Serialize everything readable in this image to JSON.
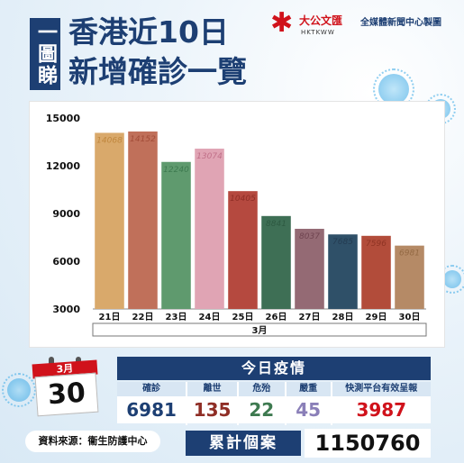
{
  "header": {
    "badge": "一圖睇",
    "title_line1": "香港近10日",
    "title_line2": "新增確診一覽",
    "logo_text": "大公文匯",
    "logo_sub": "HKTKWW",
    "credit": "全媒體新聞中心製圖"
  },
  "chart_data": {
    "type": "bar",
    "categories": [
      "21日",
      "22日",
      "23日",
      "24日",
      "25日",
      "26日",
      "27日",
      "28日",
      "29日",
      "30日"
    ],
    "values": [
      14068,
      14152,
      12240,
      13074,
      10405,
      8841,
      8037,
      7685,
      7596,
      6981
    ],
    "colors": [
      "#d9a96b",
      "#c0705a",
      "#5f9a6e",
      "#e0a4b4",
      "#b5493f",
      "#3e6f55",
      "#946a74",
      "#2f5068",
      "#b24c3a",
      "#b58a66"
    ],
    "label_colors": [
      "#c0873e",
      "#a24c38",
      "#3e7a50",
      "#c06f88",
      "#8f2e26",
      "#2e5a42",
      "#6f4450",
      "#243c52",
      "#8f3424",
      "#946a44"
    ],
    "xlabel": "3月",
    "ylim": [
      3000,
      15000
    ],
    "yticks": [
      "3000",
      "6000",
      "9000",
      "12000",
      "15000"
    ],
    "ytick_values": [
      3000,
      6000,
      9000,
      12000,
      15000
    ]
  },
  "calendar": {
    "month": "3月",
    "day": "30"
  },
  "source": "資料來源：衞生防護中心",
  "today": {
    "title": "今日疫情",
    "stats": [
      {
        "label": "確診",
        "value": "6981",
        "color": "#1d3f73"
      },
      {
        "label": "離世",
        "value": "135",
        "color": "#8f2e26"
      },
      {
        "label": "危殆",
        "value": "22",
        "color": "#3e7a50"
      },
      {
        "label": "嚴重",
        "value": "45",
        "color": "#8a7fb8"
      },
      {
        "label": "快測平台有效呈報",
        "value": "3987",
        "color": "#d0121b"
      }
    ]
  },
  "total": {
    "label": "累計個案",
    "value": "1150760"
  }
}
